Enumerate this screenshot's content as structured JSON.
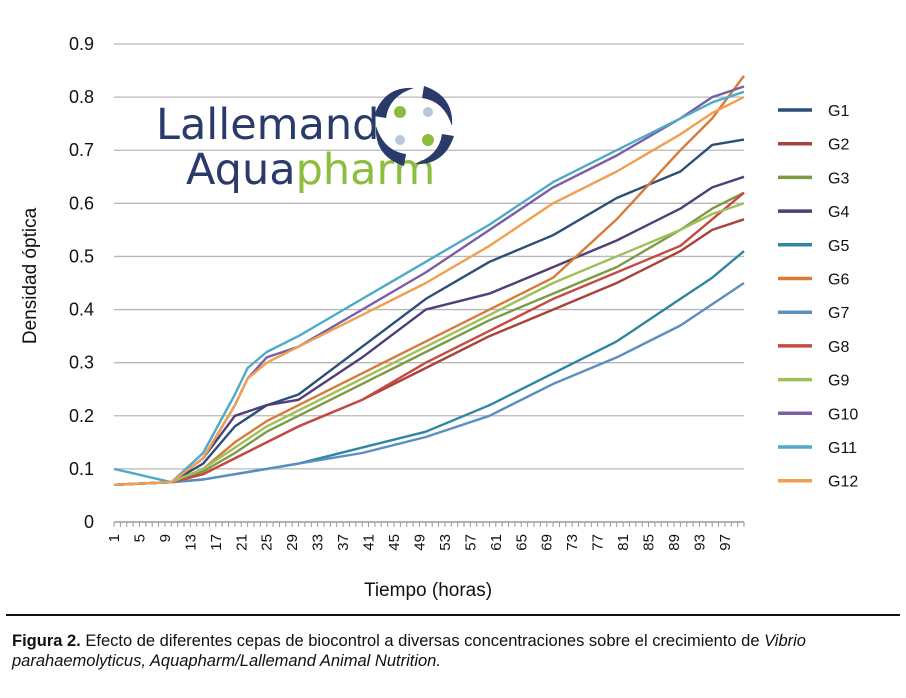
{
  "logo": {
    "line1": "Lallemand",
    "line2a": "Aqua",
    "line2b": "pharm",
    "color_navy": "#2a3b6b",
    "color_green": "#8dbd3c"
  },
  "caption": {
    "label": "Figura 2.",
    "text": "Efecto de diferentes cepas de biocontrol a diversas concentraciones sobre el crecimiento de",
    "species": "Vibrio parahaemolyticus",
    "source": ", Aquapharm/Lallemand Animal Nutrition."
  },
  "chart_data": {
    "type": "line",
    "xlabel": "Tiempo (horas)",
    "ylabel": "Densidad óptica",
    "ylim": [
      0,
      0.9
    ],
    "xlim": [
      1,
      100
    ],
    "yticks": [
      "0",
      "0.1",
      "0.2",
      "0.3",
      "0.4",
      "0.5",
      "0.6",
      "0.7",
      "0.8",
      "0.9"
    ],
    "xticks": [
      "1",
      "5",
      "9",
      "13",
      "17",
      "21",
      "25",
      "29",
      "33",
      "37",
      "41",
      "45",
      "49",
      "53",
      "57",
      "61",
      "65",
      "69",
      "73",
      "77",
      "81",
      "85",
      "89",
      "93",
      "97"
    ],
    "grid": "horizontal",
    "legend": "right",
    "series": [
      {
        "name": "G1",
        "color": "#2b4f7a",
        "x": [
          1,
          10,
          15,
          20,
          25,
          30,
          40,
          50,
          60,
          70,
          80,
          90,
          95,
          100
        ],
        "y": [
          0.07,
          0.075,
          0.11,
          0.18,
          0.22,
          0.24,
          0.33,
          0.42,
          0.49,
          0.54,
          0.61,
          0.66,
          0.71,
          0.72
        ]
      },
      {
        "name": "G2",
        "color": "#a8423b",
        "x": [
          1,
          10,
          15,
          20,
          25,
          30,
          40,
          50,
          60,
          70,
          80,
          90,
          95,
          100
        ],
        "y": [
          0.07,
          0.075,
          0.09,
          0.12,
          0.15,
          0.18,
          0.23,
          0.29,
          0.35,
          0.4,
          0.45,
          0.51,
          0.55,
          0.57
        ]
      },
      {
        "name": "G3",
        "color": "#7e9a45",
        "x": [
          1,
          10,
          15,
          20,
          25,
          30,
          40,
          50,
          60,
          70,
          80,
          90,
          95,
          100
        ],
        "y": [
          0.07,
          0.075,
          0.095,
          0.13,
          0.17,
          0.2,
          0.26,
          0.32,
          0.38,
          0.43,
          0.48,
          0.55,
          0.59,
          0.62
        ]
      },
      {
        "name": "G4",
        "color": "#4f3f78",
        "x": [
          1,
          10,
          15,
          20,
          25,
          30,
          40,
          50,
          60,
          70,
          80,
          90,
          95,
          100
        ],
        "y": [
          0.07,
          0.075,
          0.12,
          0.2,
          0.22,
          0.23,
          0.31,
          0.4,
          0.43,
          0.48,
          0.53,
          0.59,
          0.63,
          0.65
        ]
      },
      {
        "name": "G5",
        "color": "#2f86a3",
        "x": [
          1,
          10,
          15,
          20,
          25,
          30,
          40,
          50,
          60,
          70,
          80,
          90,
          95,
          100
        ],
        "y": [
          0.07,
          0.075,
          0.08,
          0.09,
          0.1,
          0.11,
          0.14,
          0.17,
          0.22,
          0.28,
          0.34,
          0.42,
          0.46,
          0.51
        ]
      },
      {
        "name": "G6",
        "color": "#d97a36",
        "x": [
          1,
          10,
          15,
          20,
          25,
          30,
          40,
          50,
          60,
          70,
          80,
          90,
          95,
          100
        ],
        "y": [
          0.07,
          0.075,
          0.1,
          0.15,
          0.19,
          0.22,
          0.28,
          0.34,
          0.4,
          0.46,
          0.57,
          0.7,
          0.76,
          0.84
        ]
      },
      {
        "name": "G7",
        "color": "#5b8fbf",
        "x": [
          1,
          10,
          15,
          20,
          25,
          30,
          40,
          50,
          60,
          70,
          80,
          90,
          95,
          100
        ],
        "y": [
          0.07,
          0.075,
          0.08,
          0.09,
          0.1,
          0.11,
          0.13,
          0.16,
          0.2,
          0.26,
          0.31,
          0.37,
          0.41,
          0.45
        ]
      },
      {
        "name": "G8",
        "color": "#c44a43",
        "x": [
          1,
          10,
          15,
          20,
          25,
          30,
          40,
          50,
          60,
          70,
          80,
          90,
          95,
          100
        ],
        "y": [
          0.07,
          0.075,
          0.09,
          0.12,
          0.15,
          0.18,
          0.23,
          0.3,
          0.36,
          0.42,
          0.47,
          0.52,
          0.57,
          0.62
        ]
      },
      {
        "name": "G9",
        "color": "#9fbf5a",
        "x": [
          1,
          10,
          15,
          20,
          25,
          30,
          40,
          50,
          60,
          70,
          80,
          90,
          95,
          100
        ],
        "y": [
          0.07,
          0.075,
          0.1,
          0.14,
          0.18,
          0.21,
          0.27,
          0.33,
          0.39,
          0.45,
          0.5,
          0.55,
          0.58,
          0.6
        ]
      },
      {
        "name": "G10",
        "color": "#7b5ea6",
        "x": [
          1,
          10,
          15,
          20,
          22,
          25,
          30,
          40,
          50,
          60,
          70,
          80,
          90,
          95,
          100
        ],
        "y": [
          0.07,
          0.075,
          0.12,
          0.22,
          0.27,
          0.31,
          0.33,
          0.4,
          0.47,
          0.55,
          0.63,
          0.69,
          0.76,
          0.8,
          0.82
        ]
      },
      {
        "name": "G11",
        "color": "#4eaac6",
        "x": [
          1,
          10,
          15,
          20,
          22,
          25,
          30,
          40,
          50,
          60,
          70,
          80,
          90,
          95,
          100
        ],
        "y": [
          0.1,
          0.075,
          0.13,
          0.24,
          0.29,
          0.32,
          0.35,
          0.42,
          0.49,
          0.56,
          0.64,
          0.7,
          0.76,
          0.79,
          0.81
        ]
      },
      {
        "name": "G12",
        "color": "#f0a050",
        "x": [
          1,
          10,
          15,
          20,
          22,
          25,
          30,
          40,
          50,
          60,
          70,
          80,
          90,
          95,
          100
        ],
        "y": [
          0.07,
          0.075,
          0.12,
          0.22,
          0.27,
          0.3,
          0.33,
          0.39,
          0.45,
          0.52,
          0.6,
          0.66,
          0.73,
          0.77,
          0.8
        ]
      }
    ]
  }
}
